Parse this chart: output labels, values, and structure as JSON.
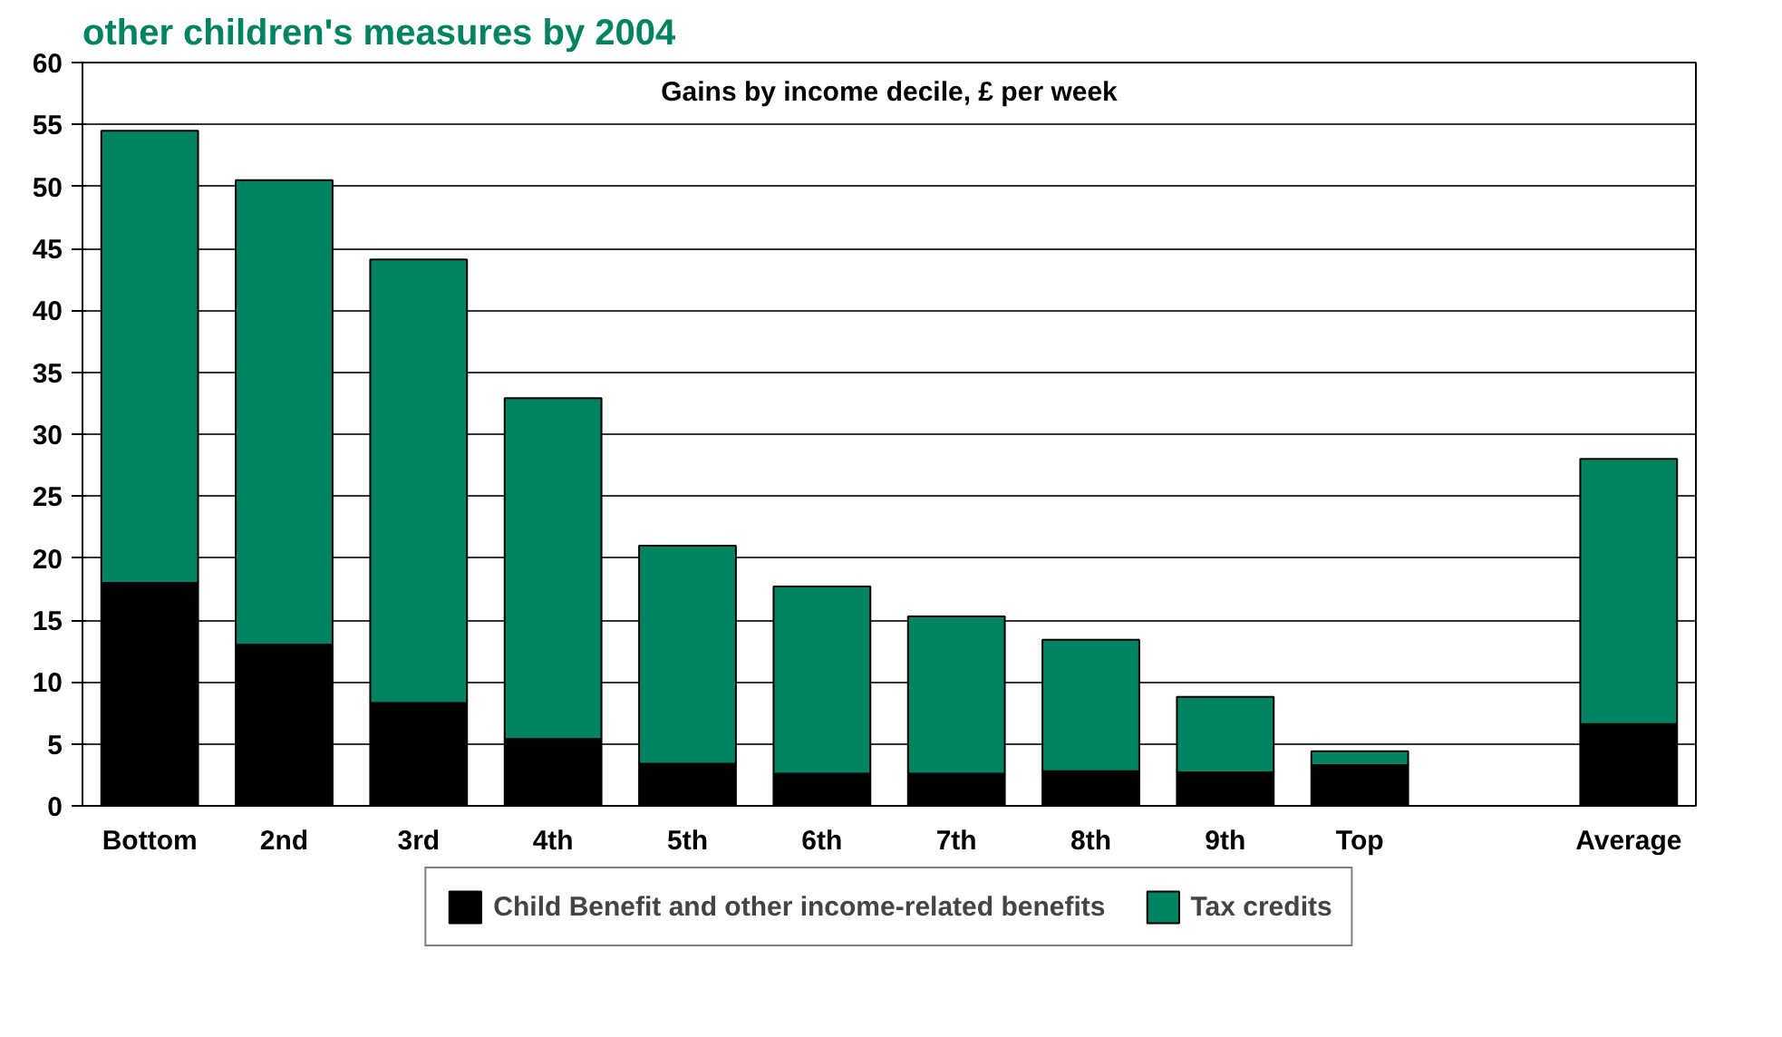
{
  "chart_data": {
    "type": "bar",
    "title": "other children's measures by 2004",
    "subtitle": "Gains by income decile, £ per week",
    "categories": [
      "Bottom",
      "2nd",
      "3rd",
      "4th",
      "5th",
      "6th",
      "7th",
      "8th",
      "9th",
      "Top",
      null,
      "Average"
    ],
    "stacked": true,
    "series": [
      {
        "name": "Child Benefit and other income-related benefits",
        "color": "#000000",
        "values": [
          18,
          13,
          8.3,
          5.4,
          3.4,
          2.6,
          2.6,
          2.8,
          2.7,
          3.3,
          null,
          6.6
        ]
      },
      {
        "name": "Tax credits",
        "color": "#008361",
        "values": [
          36.5,
          37.5,
          35.8,
          27.5,
          17.6,
          15.1,
          12.7,
          10.6,
          6.1,
          1.1,
          null,
          21.4
        ]
      }
    ],
    "ylim": [
      0,
      60
    ],
    "yticks": [
      0,
      5,
      10,
      15,
      20,
      25,
      30,
      35,
      40,
      45,
      50,
      55,
      60
    ],
    "grid": "y",
    "legend": "bottom"
  }
}
